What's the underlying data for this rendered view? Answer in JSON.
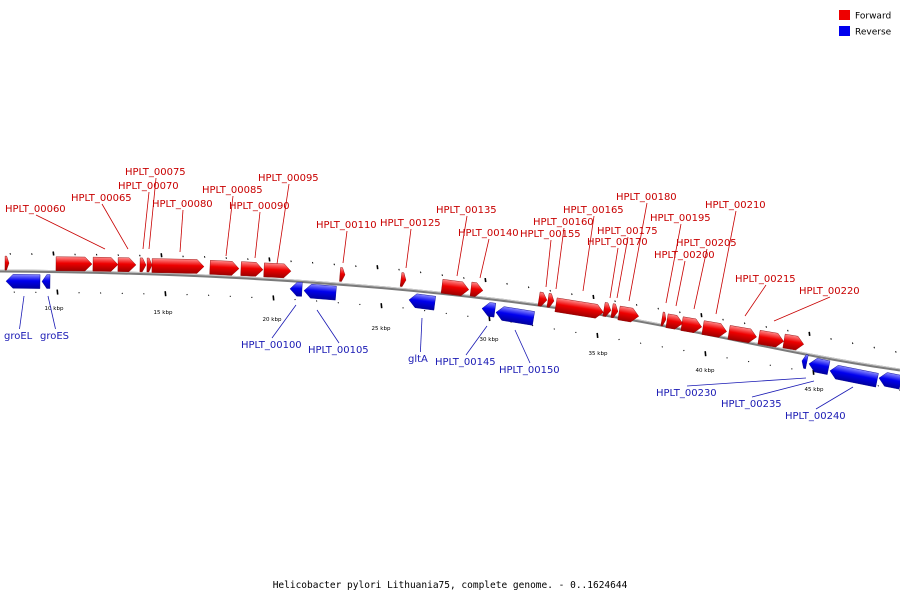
{
  "caption": "Helicobacter pylori Lithuania75, complete genome. - 0..1624644",
  "legend": [
    {
      "label": "Forward",
      "color": "#ee0000"
    },
    {
      "label": "Reverse",
      "color": "#0000ee"
    }
  ],
  "colors": {
    "forward": "#ee0000",
    "forward_label": "#c80000",
    "reverse": "#0000ee",
    "reverse_label": "#1a1ab4",
    "backbone": "#808080"
  },
  "scale_labels": [
    "10 kbp",
    "15 kbp",
    "20 kbp",
    "25 kbp",
    "30 kbp",
    "35 kbp",
    "40 kbp",
    "45 kbp"
  ],
  "forward_genes": [
    "HPLT_00060",
    "HPLT_00065",
    "HPLT_00070",
    "HPLT_00075",
    "HPLT_00080",
    "HPLT_00085",
    "HPLT_00090",
    "HPLT_00095",
    "HPLT_00110",
    "HPLT_00125",
    "HPLT_00135",
    "HPLT_00140",
    "HPLT_00155",
    "HPLT_00160",
    "HPLT_00165",
    "HPLT_00170",
    "HPLT_00175",
    "HPLT_00180",
    "HPLT_00195",
    "HPLT_00200",
    "HPLT_00205",
    "HPLT_00210",
    "HPLT_00215",
    "HPLT_00220"
  ],
  "reverse_genes": [
    "groEL",
    "groES",
    "HPLT_00100",
    "HPLT_00105",
    "gltA",
    "HPLT_00145",
    "HPLT_00150",
    "HPLT_00230",
    "HPLT_00235",
    "HPLT_00240"
  ]
}
